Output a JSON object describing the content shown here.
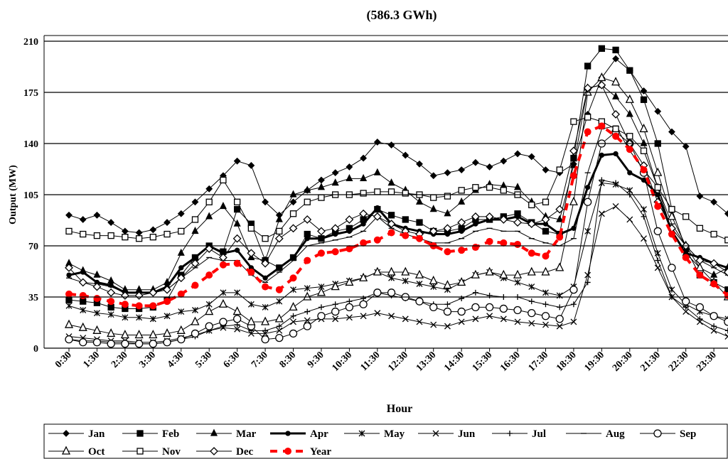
{
  "chart_data": {
    "type": "line",
    "title": "(586.3 GWh)",
    "y_label": "Output (MW)",
    "x_label": "Hour",
    "categories": [
      "0:30",
      null,
      "1:30",
      null,
      "2:30",
      null,
      "3:30",
      null,
      "4:30",
      null,
      "5:30",
      null,
      "6:30",
      null,
      "7:30",
      null,
      "8:30",
      null,
      "9:30",
      null,
      "10:30",
      null,
      "11:30",
      null,
      "12:30",
      null,
      "13:30",
      null,
      "14:30",
      null,
      "15:30",
      null,
      "16:30",
      null,
      "17:30",
      null,
      "18:30",
      null,
      "19:30",
      null,
      "20:30",
      null,
      "21:30",
      null,
      "22:30",
      null,
      "23:30",
      null
    ],
    "ylim": [
      0,
      210
    ],
    "yticks": [
      0,
      35,
      70,
      105,
      140,
      175,
      210
    ],
    "grid": true,
    "series": [
      {
        "name": "Jan",
        "color": "#000000",
        "marker": "diamond",
        "values": [
          91,
          88,
          91,
          86,
          80,
          79,
          81,
          86,
          92,
          100,
          109,
          118,
          128,
          125,
          100,
          91,
          100,
          108,
          115,
          120,
          124,
          130,
          141,
          139,
          132,
          126,
          118,
          120,
          122,
          127,
          124,
          128,
          133,
          131,
          122,
          120,
          126,
          160,
          185,
          198,
          190,
          176,
          162,
          148,
          138,
          104,
          100,
          92
        ]
      },
      {
        "name": "Feb",
        "color": "#000000",
        "marker": "square",
        "values": [
          33,
          32,
          31,
          28,
          27,
          27,
          28,
          33,
          50,
          62,
          70,
          66,
          95,
          85,
          60,
          55,
          62,
          78,
          75,
          80,
          82,
          88,
          95,
          91,
          88,
          86,
          80,
          80,
          82,
          88,
          88,
          90,
          92,
          86,
          80,
          78,
          130,
          193,
          205,
          204,
          190,
          170,
          140,
          95,
          68,
          50,
          45,
          40
        ]
      },
      {
        "name": "Mar",
        "color": "#000000",
        "marker": "triangle",
        "values": [
          58,
          53,
          50,
          46,
          40,
          40,
          40,
          45,
          65,
          80,
          90,
          97,
          85,
          62,
          60,
          88,
          105,
          108,
          110,
          113,
          116,
          116,
          120,
          113,
          108,
          100,
          95,
          92,
          100,
          108,
          112,
          111,
          110,
          100,
          90,
          88,
          125,
          178,
          180,
          172,
          160,
          140,
          110,
          80,
          65,
          55,
          50,
          55
        ]
      },
      {
        "name": "Apr",
        "color": "#000000",
        "marker": "circle",
        "line_width": 3,
        "values": [
          50,
          52,
          45,
          43,
          38,
          38,
          38,
          42,
          55,
          62,
          70,
          65,
          67,
          55,
          48,
          55,
          62,
          75,
          75,
          78,
          80,
          85,
          96,
          85,
          82,
          80,
          78,
          78,
          80,
          85,
          88,
          88,
          90,
          85,
          85,
          78,
          82,
          110,
          132,
          133,
          120,
          115,
          105,
          80,
          65,
          62,
          58,
          55
        ]
      },
      {
        "name": "May",
        "color": "#000000",
        "marker": "star",
        "values": [
          29,
          26,
          24,
          23,
          21,
          21,
          20,
          22,
          25,
          26,
          30,
          38,
          38,
          30,
          28,
          32,
          40,
          41,
          42,
          44,
          46,
          48,
          52,
          48,
          46,
          44,
          42,
          40,
          45,
          50,
          52,
          48,
          45,
          42,
          38,
          36,
          42,
          80,
          113,
          112,
          108,
          95,
          65,
          40,
          30,
          25,
          22,
          20
        ]
      },
      {
        "name": "Jun",
        "color": "#000000",
        "marker": "x",
        "values": [
          8,
          7,
          6,
          5,
          5,
          4,
          4,
          5,
          7,
          9,
          12,
          14,
          13,
          10,
          10,
          12,
          18,
          19,
          20,
          20,
          21,
          22,
          24,
          22,
          20,
          18,
          16,
          15,
          18,
          20,
          22,
          20,
          18,
          17,
          16,
          15,
          18,
          50,
          92,
          97,
          88,
          75,
          55,
          35,
          25,
          18,
          12,
          8
        ]
      },
      {
        "name": "Jul",
        "color": "#000000",
        "marker": "plus",
        "values": [
          6,
          5,
          5,
          4,
          4,
          3,
          3,
          4,
          6,
          8,
          12,
          15,
          16,
          12,
          12,
          15,
          22,
          25,
          28,
          30,
          32,
          34,
          38,
          36,
          34,
          32,
          30,
          30,
          34,
          38,
          36,
          35,
          35,
          32,
          30,
          28,
          30,
          45,
          115,
          113,
          105,
          90,
          60,
          35,
          28,
          20,
          15,
          12
        ]
      },
      {
        "name": "Aug",
        "color": "#000000",
        "marker": "dash",
        "values": [
          48,
          45,
          44,
          42,
          38,
          38,
          38,
          40,
          48,
          55,
          62,
          60,
          60,
          50,
          45,
          52,
          60,
          70,
          72,
          74,
          76,
          80,
          90,
          82,
          78,
          75,
          72,
          72,
          75,
          80,
          82,
          80,
          80,
          75,
          72,
          70,
          75,
          120,
          150,
          152,
          135,
          122,
          110,
          85,
          70,
          60,
          55,
          50
        ]
      },
      {
        "name": "Sep",
        "color": "#000000",
        "marker": "open-circle",
        "values": [
          6,
          4,
          4,
          3,
          3,
          3,
          3,
          4,
          6,
          10,
          15,
          18,
          20,
          15,
          6,
          7,
          10,
          15,
          22,
          25,
          28,
          30,
          38,
          38,
          35,
          32,
          28,
          25,
          25,
          28,
          28,
          27,
          26,
          24,
          22,
          20,
          40,
          100,
          140,
          148,
          140,
          120,
          80,
          55,
          32,
          28,
          22,
          18
        ]
      },
      {
        "name": "Oct",
        "color": "#000000",
        "marker": "open-triangle",
        "values": [
          16,
          14,
          12,
          10,
          9,
          9,
          9,
          10,
          12,
          18,
          25,
          30,
          25,
          18,
          18,
          20,
          28,
          35,
          38,
          42,
          45,
          48,
          52,
          52,
          52,
          50,
          46,
          43,
          45,
          50,
          52,
          50,
          50,
          52,
          52,
          55,
          100,
          175,
          185,
          182,
          170,
          150,
          120,
          90,
          70,
          55,
          45,
          35
        ]
      },
      {
        "name": "Nov",
        "color": "#000000",
        "marker": "open-square",
        "values": [
          80,
          78,
          77,
          77,
          76,
          75,
          76,
          78,
          80,
          88,
          100,
          115,
          100,
          82,
          75,
          80,
          92,
          100,
          103,
          105,
          105,
          106,
          107,
          107,
          106,
          105,
          103,
          104,
          108,
          110,
          110,
          108,
          105,
          98,
          100,
          122,
          155,
          158,
          155,
          150,
          145,
          135,
          110,
          95,
          90,
          82,
          78,
          74
        ]
      },
      {
        "name": "Dec",
        "color": "#000000",
        "marker": "open-diamond",
        "values": [
          55,
          45,
          42,
          38,
          36,
          36,
          38,
          40,
          48,
          58,
          68,
          62,
          75,
          65,
          58,
          75,
          82,
          88,
          80,
          82,
          88,
          92,
          90,
          85,
          80,
          78,
          80,
          82,
          86,
          90,
          90,
          88,
          86,
          85,
          88,
          95,
          135,
          178,
          180,
          160,
          140,
          125,
          100,
          82,
          70,
          60,
          58,
          52
        ]
      },
      {
        "name": "Year",
        "color": "#ff0000",
        "marker": "dot",
        "line_width": 4,
        "dashed": true,
        "values": [
          37,
          36,
          34,
          32,
          30,
          29,
          29,
          32,
          37,
          43,
          50,
          57,
          58,
          52,
          42,
          40,
          48,
          60,
          65,
          66,
          68,
          72,
          74,
          79,
          77,
          75,
          70,
          66,
          67,
          69,
          73,
          72,
          71,
          65,
          63,
          76,
          118,
          148,
          152,
          145,
          136,
          122,
          97,
          78,
          62,
          50,
          44,
          36
        ]
      }
    ]
  }
}
